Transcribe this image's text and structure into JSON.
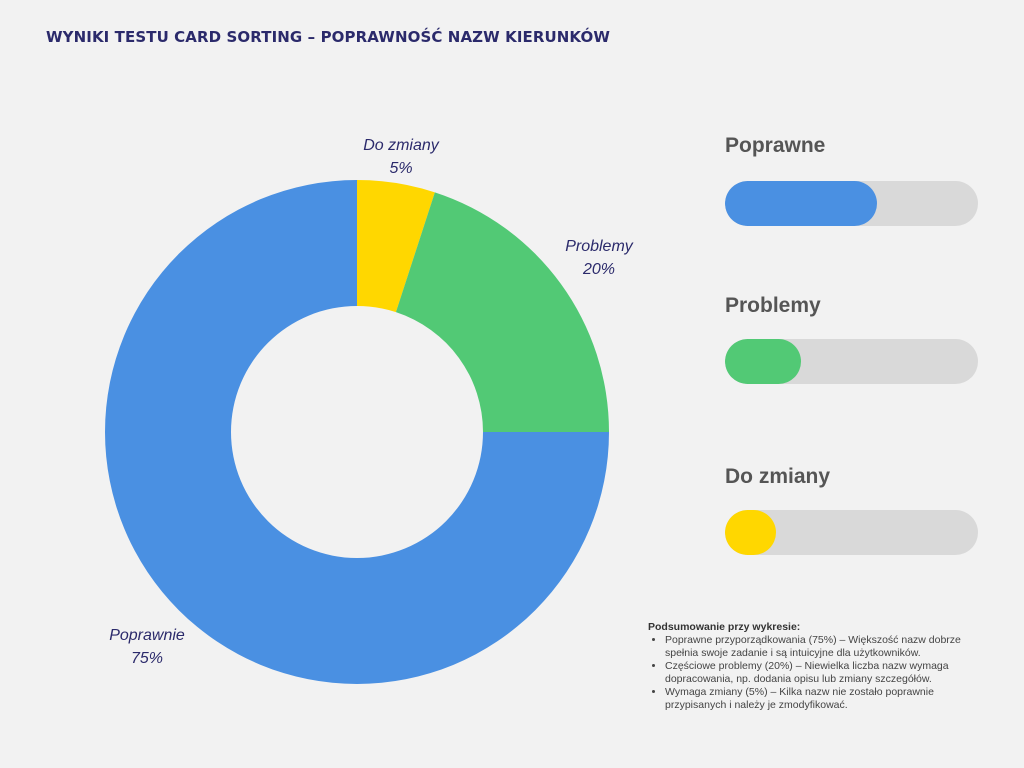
{
  "title": "WYNIKI TESTU CARD SORTING – POPRAWNOŚĆ NAZW KIERUNKÓW",
  "chart_data": {
    "type": "pie",
    "slices": [
      {
        "label": "Do zmiany",
        "value_label": "5%",
        "value": 5,
        "color": "#ffd700"
      },
      {
        "label": "Problemy",
        "value_label": "20%",
        "value": 20,
        "color": "#52c975"
      },
      {
        "label": "Poprawne",
        "value_label": "75%",
        "value": 75,
        "color": "#4a90e2"
      }
    ],
    "slice_labels": [
      {
        "label": "Do zmiany",
        "value_label": "5%"
      },
      {
        "label": "Problemy",
        "value_label": "20%"
      },
      {
        "label": "Poprawnie",
        "value_label": "75%"
      }
    ]
  },
  "progress_legend": [
    {
      "label": "Poprawne",
      "fraction": 0.6,
      "color": "#4a90e2"
    },
    {
      "label": "Problemy",
      "fraction": 0.3,
      "color": "#52c975"
    },
    {
      "label": "Do zmiany",
      "fraction": 0.2,
      "color": "#ffd700"
    }
  ],
  "summary": {
    "title": "Podsumowanie przy wykresie:",
    "items": [
      "Poprawne przyporządkowania (75%) – Większość nazw dobrze spełnia swoje zadanie i są intuicyjne dla użytkowników.",
      "Częściowe problemy (20%) – Niewielka liczba nazw wymaga dopracowania, np. dodania opisu lub zmiany szczegółów.",
      "Wymaga zmiany (5%) – Kilka nazw nie zostało poprawnie przypisanych i należy je zmodyfikować."
    ]
  }
}
